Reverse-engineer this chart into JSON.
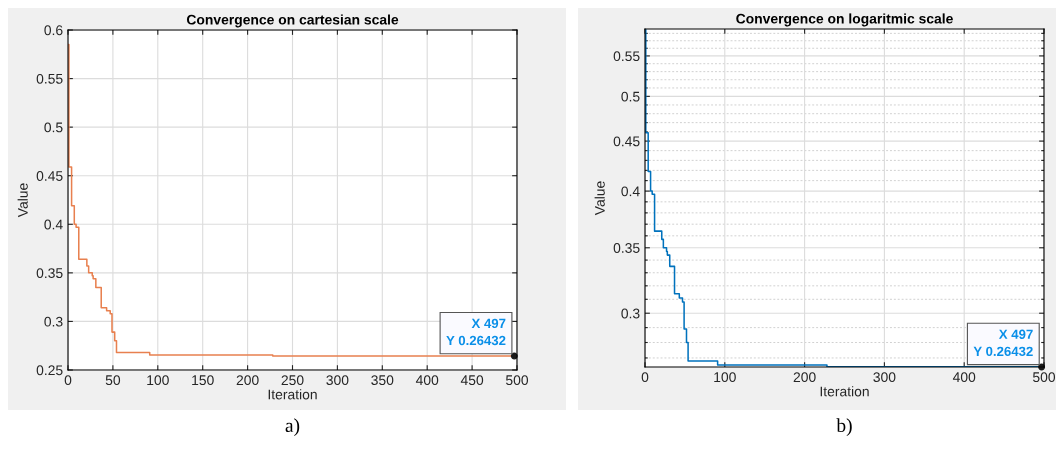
{
  "chart_data": [
    {
      "type": "step",
      "title": "Convergence on cartesian scale",
      "xlabel": "Iteration",
      "ylabel": "Value",
      "x": [
        0,
        1,
        4,
        7,
        9,
        12,
        21,
        23,
        27,
        28,
        31,
        37,
        43,
        47,
        49,
        52,
        54,
        91,
        228,
        497
      ],
      "series": [
        {
          "color": "#e8804f",
          "values": [
            0.585,
            0.459,
            0.419,
            0.4,
            0.397,
            0.364,
            0.357,
            0.35,
            0.347,
            0.344,
            0.335,
            0.314,
            0.311,
            0.308,
            0.289,
            0.28,
            0.268,
            0.2655,
            0.2645,
            0.26432
          ]
        }
      ],
      "xlim": [
        0,
        500
      ],
      "xticks": [
        0,
        50,
        100,
        150,
        200,
        250,
        300,
        350,
        400,
        450,
        500
      ],
      "ylim": [
        0.25,
        0.6
      ],
      "yticks": [
        0.25,
        0.3,
        0.35,
        0.4,
        0.45,
        0.5,
        0.55,
        0.6
      ],
      "grid": true,
      "annotations": [
        {
          "text": "X 497\nY 0.26432",
          "x": 497,
          "y": 0.26432
        },
        "a)"
      ]
    },
    {
      "type": "step",
      "title": "Convergence on logaritmic scale",
      "xlabel": "Iteration",
      "ylabel": "Value",
      "log": "y",
      "x": [
        0,
        1,
        4,
        7,
        9,
        12,
        21,
        23,
        27,
        28,
        31,
        37,
        43,
        47,
        49,
        52,
        54,
        91,
        228,
        497
      ],
      "series": [
        {
          "color": "#0072bd",
          "values": [
            0.585,
            0.459,
            0.419,
            0.4,
            0.397,
            0.364,
            0.357,
            0.35,
            0.347,
            0.344,
            0.335,
            0.314,
            0.311,
            0.308,
            0.289,
            0.28,
            0.268,
            0.2655,
            0.2645,
            0.26432
          ]
        }
      ],
      "xlim": [
        0,
        500
      ],
      "xticks": [
        0,
        100,
        200,
        300,
        400,
        500
      ],
      "ylim": [
        0.2643,
        0.586
      ],
      "yticks": [
        {
          "value": 0.27,
          "label": null
        },
        {
          "value": 0.28,
          "label": null
        },
        {
          "value": 0.29,
          "label": null
        },
        0.3,
        {
          "value": 0.31,
          "label": null
        },
        {
          "value": 0.32,
          "label": null
        },
        {
          "value": 0.33,
          "label": null
        },
        {
          "value": 0.34,
          "label": null
        },
        0.35,
        {
          "value": 0.36,
          "label": null
        },
        {
          "value": 0.37,
          "label": null
        },
        {
          "value": 0.38,
          "label": null
        },
        {
          "value": 0.39,
          "label": null
        },
        0.4,
        {
          "value": 0.41,
          "label": null
        },
        {
          "value": 0.42,
          "label": null
        },
        {
          "value": 0.43,
          "label": null
        },
        {
          "value": 0.44,
          "label": null
        },
        0.45,
        {
          "value": 0.46,
          "label": null
        },
        {
          "value": 0.47,
          "label": null
        },
        {
          "value": 0.48,
          "label": null
        },
        {
          "value": 0.49,
          "label": null
        },
        0.5,
        {
          "value": 0.51,
          "label": null
        },
        {
          "value": 0.52,
          "label": null
        },
        {
          "value": 0.53,
          "label": null
        },
        {
          "value": 0.54,
          "label": null
        },
        0.55,
        {
          "value": 0.56,
          "label": null
        },
        {
          "value": 0.57,
          "label": null
        },
        {
          "value": 0.58,
          "label": null
        }
      ],
      "grid": true,
      "annotations": [
        {
          "text": "X 497\nY 0.26432",
          "x": 497,
          "y": 0.26432
        },
        "b)"
      ]
    }
  ]
}
